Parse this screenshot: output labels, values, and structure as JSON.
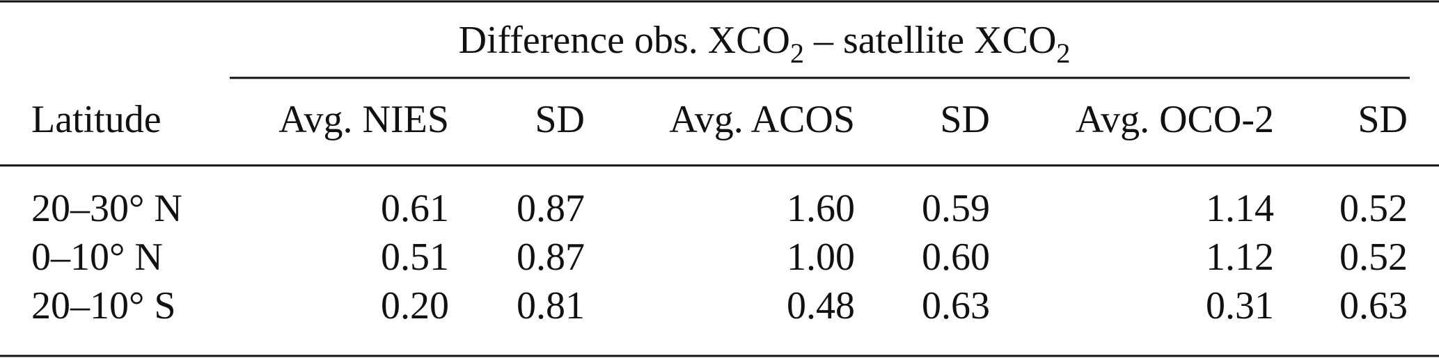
{
  "table": {
    "spanner": [
      "Difference obs. XCO",
      "2",
      " – satellite XCO",
      "2"
    ],
    "columns": [
      "Latitude",
      "Avg. NIES",
      "SD",
      "Avg. ACOS",
      "SD",
      "Avg. OCO-2",
      "SD"
    ],
    "rows": [
      [
        "20–30° N",
        "0.61",
        "0.87",
        "1.60",
        "0.59",
        "1.14",
        "0.52"
      ],
      [
        "0–10° N",
        "0.51",
        "0.87",
        "1.00",
        "0.60",
        "1.12",
        "0.52"
      ],
      [
        "20–10° S",
        "0.20",
        "0.81",
        "0.48",
        "0.63",
        "0.31",
        "0.63"
      ]
    ]
  }
}
